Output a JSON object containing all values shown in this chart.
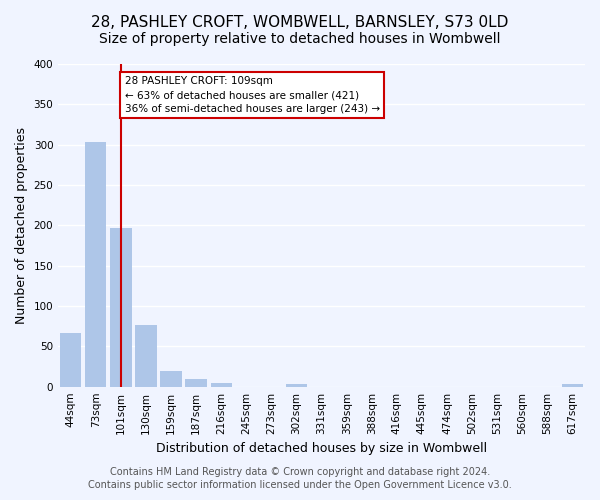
{
  "title_line1": "28, PASHLEY CROFT, WOMBWELL, BARNSLEY, S73 0LD",
  "title_line2": "Size of property relative to detached houses in Wombwell",
  "bar_labels": [
    "44sqm",
    "73sqm",
    "101sqm",
    "130sqm",
    "159sqm",
    "187sqm",
    "216sqm",
    "245sqm",
    "273sqm",
    "302sqm",
    "331sqm",
    "359sqm",
    "388sqm",
    "416sqm",
    "445sqm",
    "474sqm",
    "502sqm",
    "531sqm",
    "560sqm",
    "588sqm",
    "617sqm"
  ],
  "bar_values": [
    67,
    303,
    197,
    77,
    20,
    10,
    4,
    0,
    0,
    3,
    0,
    0,
    0,
    0,
    0,
    0,
    0,
    0,
    0,
    0,
    3
  ],
  "bar_color": "#aec6e8",
  "property_line_x": 2,
  "property_value": 109,
  "property_label": "28 PASHLEY CROFT: 109sqm",
  "annotation_line1": "28 PASHLEY CROFT: 109sqm",
  "annotation_line2": "← 63% of detached houses are smaller (421)",
  "annotation_line3": "36% of semi-detached houses are larger (243) →",
  "annotation_box_color": "#ffffff",
  "annotation_box_edge": "#cc0000",
  "property_line_color": "#cc0000",
  "ylabel": "Number of detached properties",
  "xlabel": "Distribution of detached houses by size in Wombwell",
  "ylim": [
    0,
    400
  ],
  "yticks": [
    0,
    50,
    100,
    150,
    200,
    250,
    300,
    350,
    400
  ],
  "footer_line1": "Contains HM Land Registry data © Crown copyright and database right 2024.",
  "footer_line2": "Contains public sector information licensed under the Open Government Licence v3.0.",
  "background_color": "#f0f4ff",
  "plot_background": "#f0f4ff",
  "grid_color": "#ffffff",
  "title_fontsize": 11,
  "subtitle_fontsize": 10,
  "axis_label_fontsize": 9,
  "tick_fontsize": 7.5,
  "footer_fontsize": 7
}
